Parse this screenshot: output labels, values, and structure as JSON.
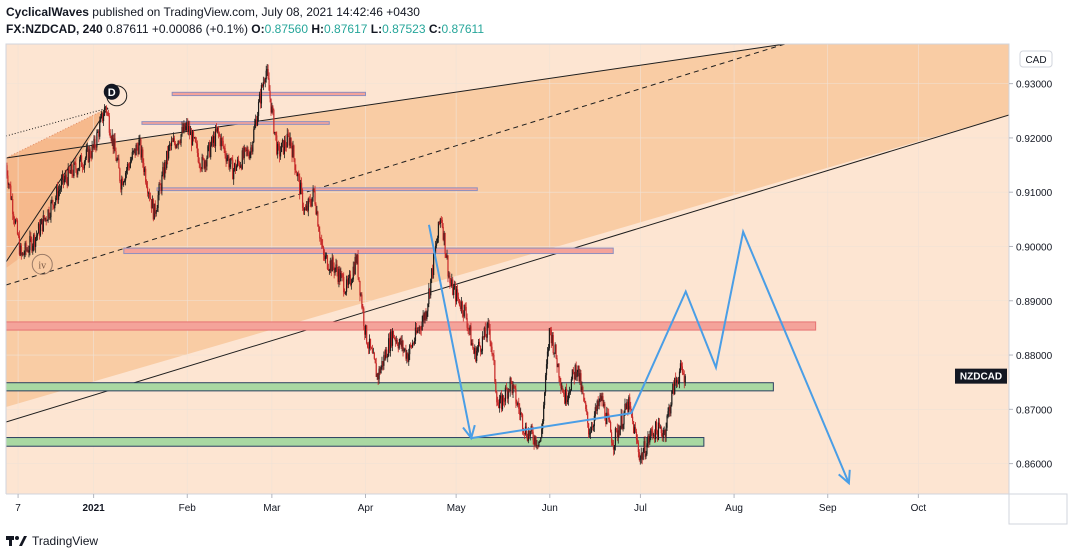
{
  "header": {
    "author": "CyclicalWaves",
    "published_text": "published on TradingView.com, July 08, 2021 14:42:46 +0430"
  },
  "ohlc": {
    "symbol": "FX:NZDCAD, 240",
    "last": "0.87611",
    "change": "+0.00086 (+0.1%)",
    "o_label": "O:",
    "o": "0.87560",
    "h_label": "H:",
    "h": "0.87617",
    "l_label": "L:",
    "l": "0.87523",
    "c_label": "C:",
    "c": "0.87611"
  },
  "footer": {
    "brand": "TradingView"
  },
  "chart_data": {
    "type": "candlestick",
    "currency_label": "CAD",
    "symbol_tag": "NZDCAD",
    "y_ticks": [
      "0.93000",
      "0.92000",
      "0.91000",
      "0.90000",
      "0.89000",
      "0.88000",
      "0.87000",
      "0.86000"
    ],
    "y_tick_values": [
      0.93,
      0.92,
      0.91,
      0.9,
      0.89,
      0.88,
      0.87,
      0.86
    ],
    "ylim": [
      0.8544,
      0.9373
    ],
    "x_ticks": [
      "7",
      "2021",
      "Feb",
      "Mar",
      "Apr",
      "May",
      "Jun",
      "Jul",
      "Aug",
      "Sep",
      "Oct"
    ],
    "x_tick_dates": [
      "2020-12-07",
      "2021-01-01",
      "2021-02-01",
      "2021-03-01",
      "2021-04-01",
      "2021-05-01",
      "2021-06-01",
      "2021-07-01",
      "2021-08-01",
      "2021-09-01",
      "2021-10-01"
    ],
    "xlim": [
      "2020-12-03",
      "2021-10-31"
    ],
    "last_price": 0.87611,
    "price_path": [
      [
        "2020-12-03",
        0.915
      ],
      [
        "2020-12-08",
        0.898
      ],
      [
        "2020-12-13",
        0.902
      ],
      [
        "2020-12-22",
        0.912
      ],
      [
        "2021-01-01",
        0.918
      ],
      [
        "2021-01-05",
        0.926
      ],
      [
        "2021-01-10",
        0.912
      ],
      [
        "2021-01-16",
        0.919
      ],
      [
        "2021-01-21",
        0.906
      ],
      [
        "2021-01-26",
        0.918
      ],
      [
        "2021-02-01",
        0.922
      ],
      [
        "2021-02-06",
        0.915
      ],
      [
        "2021-02-11",
        0.921
      ],
      [
        "2021-02-16",
        0.914
      ],
      [
        "2021-02-22",
        0.918
      ],
      [
        "2021-02-27",
        0.933
      ],
      [
        "2021-03-03",
        0.917
      ],
      [
        "2021-03-07",
        0.92
      ],
      [
        "2021-03-12",
        0.906
      ],
      [
        "2021-03-15",
        0.91
      ],
      [
        "2021-03-18",
        0.898
      ],
      [
        "2021-03-22",
        0.896
      ],
      [
        "2021-03-26",
        0.892
      ],
      [
        "2021-03-29",
        0.898
      ],
      [
        "2021-04-01",
        0.884
      ],
      [
        "2021-04-05",
        0.876
      ],
      [
        "2021-04-10",
        0.884
      ],
      [
        "2021-04-15",
        0.88
      ],
      [
        "2021-04-21",
        0.888
      ],
      [
        "2021-04-26",
        0.906
      ],
      [
        "2021-04-29",
        0.893
      ],
      [
        "2021-05-04",
        0.888
      ],
      [
        "2021-05-07",
        0.88
      ],
      [
        "2021-05-12",
        0.885
      ],
      [
        "2021-05-15",
        0.87
      ],
      [
        "2021-05-19",
        0.875
      ],
      [
        "2021-05-24",
        0.866
      ],
      [
        "2021-05-29",
        0.864
      ],
      [
        "2021-06-01",
        0.885
      ],
      [
        "2021-06-06",
        0.872
      ],
      [
        "2021-06-10",
        0.878
      ],
      [
        "2021-06-14",
        0.866
      ],
      [
        "2021-06-18",
        0.872
      ],
      [
        "2021-06-22",
        0.864
      ],
      [
        "2021-06-27",
        0.871
      ],
      [
        "2021-07-01",
        0.861
      ],
      [
        "2021-07-05",
        0.866
      ],
      [
        "2021-07-09",
        0.866
      ],
      [
        "2021-07-12",
        0.874
      ],
      [
        "2021-07-14",
        0.877
      ],
      [
        "2021-07-16",
        0.876
      ]
    ],
    "zones": [
      {
        "y": [
          0.8846,
          0.8861
        ],
        "x": [
          "2020-12-03",
          "2021-08-28"
        ],
        "fill": "#f4a39a",
        "stroke": "#e57373"
      },
      {
        "y": [
          0.8734,
          0.8749
        ],
        "x": [
          "2020-12-03",
          "2021-08-14"
        ],
        "fill": "#a9d8a2",
        "stroke": "#2a3f5f"
      },
      {
        "y": [
          0.8632,
          0.8648
        ],
        "x": [
          "2020-12-03",
          "2021-07-22"
        ],
        "fill": "#a9d8a2",
        "stroke": "#2a3f5f"
      },
      {
        "y": [
          0.8987,
          0.8997
        ],
        "x": [
          "2021-01-11",
          "2021-06-22"
        ],
        "fill": "#f4a39a",
        "stroke": "#8e8fbf"
      },
      {
        "y": [
          0.9103,
          0.9108
        ],
        "x": [
          "2021-01-22",
          "2021-05-08"
        ],
        "fill": "#f4a39a",
        "stroke": "#8e8fbf"
      },
      {
        "y": [
          0.9225,
          0.923
        ],
        "x": [
          "2021-01-17",
          "2021-03-20"
        ],
        "fill": "#f4a39a",
        "stroke": "#8e8fbf"
      },
      {
        "y": [
          0.9278,
          0.9284
        ],
        "x": [
          "2021-01-27",
          "2021-04-01"
        ],
        "fill": "#f4a39a",
        "stroke": "#8e8fbf"
      }
    ],
    "projection": [
      [
        "2021-04-22",
        0.904
      ],
      [
        "2021-05-06",
        0.8647
      ],
      [
        "2021-06-28",
        0.8693
      ],
      [
        "2021-07-16",
        0.8917
      ],
      [
        "2021-07-26",
        0.8777
      ],
      [
        "2021-08-04",
        0.9027
      ],
      [
        "2021-09-08",
        0.8564
      ]
    ],
    "wave_labels": [
      {
        "text": "D",
        "date": "2021-01-07",
        "price": 0.9285,
        "style": "filled"
      },
      {
        "text": "iv",
        "date": "2020-12-15",
        "price": 0.8967,
        "style": "outlined"
      }
    ]
  }
}
